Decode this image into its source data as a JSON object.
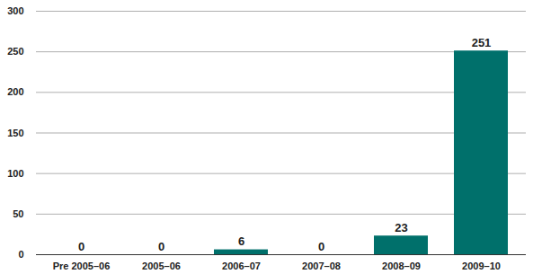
{
  "chart_data": {
    "type": "bar",
    "categories": [
      "Pre 2005–06",
      "2005–06",
      "2006–07",
      "2007–08",
      "2008–09",
      "2009–10"
    ],
    "values": [
      0,
      0,
      6,
      0,
      23,
      251
    ],
    "color": "#00706b",
    "ylim": [
      0,
      300
    ],
    "yticks": [
      0,
      50,
      100,
      150,
      200,
      250,
      300
    ],
    "grid": true,
    "data_labels": true
  }
}
